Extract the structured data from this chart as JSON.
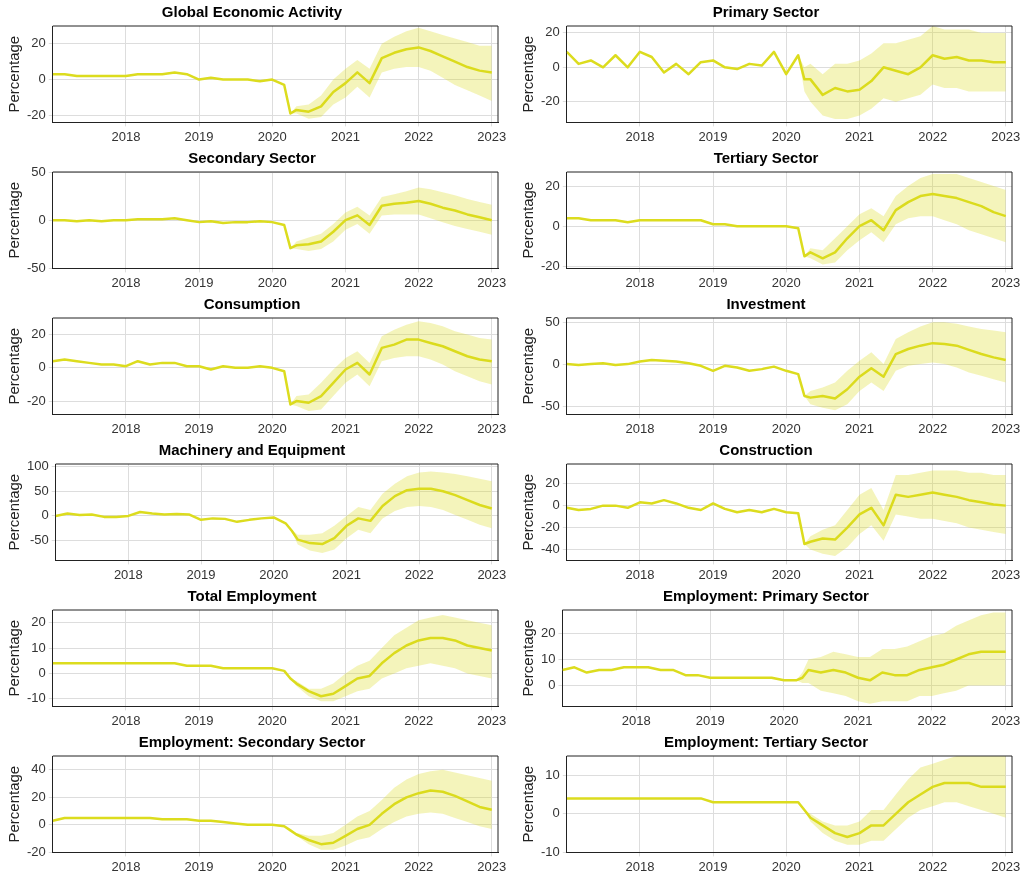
{
  "chart_data": [
    {
      "type": "line",
      "title": "Global Economic Activity",
      "ylabel": "Percentage",
      "grid": true,
      "xlim": [
        "2017-01",
        "2023-02"
      ],
      "xticks": [
        "2018",
        "2019",
        "2020",
        "2021",
        "2022",
        "2023"
      ],
      "ylim": [
        -24,
        30
      ],
      "yticks": [
        -20,
        0,
        20
      ],
      "x": [
        "2017-01",
        "2017-03",
        "2017-05",
        "2017-07",
        "2017-09",
        "2017-11",
        "2018-01",
        "2018-03",
        "2018-05",
        "2018-07",
        "2018-09",
        "2018-11",
        "2019-01",
        "2019-03",
        "2019-05",
        "2019-07",
        "2019-09",
        "2019-11",
        "2020-01",
        "2020-03",
        "2020-04",
        "2020-05",
        "2020-07",
        "2020-09",
        "2020-11",
        "2021-01",
        "2021-03",
        "2021-05",
        "2021-07",
        "2021-09",
        "2021-11",
        "2022-01",
        "2022-03",
        "2022-05",
        "2022-07",
        "2022-09",
        "2022-11",
        "2023-01"
      ],
      "series": [
        {
          "color": "#dcdc1e",
          "values": [
            3,
            3,
            2,
            2,
            2,
            2,
            2,
            3,
            3,
            3,
            4,
            3,
            0,
            1,
            0,
            0,
            0,
            -1,
            0,
            -3,
            -19,
            -17,
            -18,
            -15,
            -7,
            -2,
            4,
            -2,
            12,
            15,
            17,
            18,
            16,
            13,
            10,
            7,
            5,
            4
          ],
          "lower": [
            null,
            null,
            null,
            null,
            null,
            null,
            null,
            null,
            null,
            null,
            null,
            null,
            null,
            null,
            null,
            null,
            null,
            null,
            null,
            -3,
            -19,
            -19,
            -22,
            -21,
            -14,
            -10,
            -4,
            -10,
            4,
            6,
            7,
            7,
            5,
            1,
            -3,
            -6,
            -9,
            -12
          ],
          "upper": [
            null,
            null,
            null,
            null,
            null,
            null,
            null,
            null,
            null,
            null,
            null,
            null,
            null,
            null,
            null,
            null,
            null,
            null,
            null,
            -3,
            -19,
            -15,
            -14,
            -9,
            0,
            6,
            11,
            6,
            20,
            24,
            27,
            29,
            27,
            25,
            23,
            21,
            19,
            19
          ]
        }
      ]
    },
    {
      "type": "line",
      "title": "Primary Sector",
      "ylabel": "Percentage",
      "grid": true,
      "xlim": [
        "2017-01",
        "2023-02"
      ],
      "xticks": [
        "2018",
        "2019",
        "2020",
        "2021",
        "2022",
        "2023"
      ],
      "ylim": [
        -32,
        24
      ],
      "yticks": [
        -20,
        0,
        20
      ],
      "x": [
        "2017-01",
        "2017-03",
        "2017-05",
        "2017-07",
        "2017-09",
        "2017-11",
        "2018-01",
        "2018-03",
        "2018-05",
        "2018-07",
        "2018-09",
        "2018-11",
        "2019-01",
        "2019-03",
        "2019-05",
        "2019-07",
        "2019-09",
        "2019-11",
        "2020-01",
        "2020-03",
        "2020-04",
        "2020-05",
        "2020-07",
        "2020-09",
        "2020-11",
        "2021-01",
        "2021-03",
        "2021-05",
        "2021-07",
        "2021-09",
        "2021-11",
        "2022-01",
        "2022-03",
        "2022-05",
        "2022-07",
        "2022-09",
        "2022-11",
        "2023-01"
      ],
      "series": [
        {
          "color": "#dcdc1e",
          "values": [
            9,
            2,
            4,
            0,
            7,
            0,
            9,
            6,
            -3,
            2,
            -4,
            3,
            4,
            0,
            -1,
            2,
            1,
            9,
            -4,
            7,
            -7,
            -7,
            -16,
            -12,
            -14,
            -13,
            -8,
            0,
            -2,
            -4,
            0,
            7,
            5,
            6,
            4,
            4,
            3,
            3
          ],
          "lower": [
            null,
            null,
            null,
            null,
            null,
            null,
            null,
            null,
            null,
            null,
            null,
            null,
            null,
            null,
            null,
            null,
            null,
            null,
            null,
            7,
            -14,
            -20,
            -28,
            -30,
            -30,
            -28,
            -24,
            -18,
            -20,
            -18,
            -16,
            -10,
            -12,
            -12,
            -14,
            -14,
            -14,
            -14
          ],
          "upper": [
            null,
            null,
            null,
            null,
            null,
            null,
            null,
            null,
            null,
            null,
            null,
            null,
            null,
            null,
            null,
            null,
            null,
            null,
            null,
            7,
            0,
            2,
            -4,
            2,
            2,
            4,
            8,
            14,
            14,
            16,
            18,
            24,
            22,
            22,
            22,
            20,
            20,
            20
          ]
        }
      ]
    },
    {
      "type": "line",
      "title": "Secondary Sector",
      "ylabel": "Percentage",
      "grid": true,
      "xlim": [
        "2017-01",
        "2023-02"
      ],
      "xticks": [
        "2018",
        "2019",
        "2020",
        "2021",
        "2022",
        "2023"
      ],
      "ylim": [
        -50,
        50
      ],
      "yticks": [
        -50,
        0,
        50
      ],
      "x": [
        "2017-01",
        "2017-03",
        "2017-05",
        "2017-07",
        "2017-09",
        "2017-11",
        "2018-01",
        "2018-03",
        "2018-05",
        "2018-07",
        "2018-09",
        "2018-11",
        "2019-01",
        "2019-03",
        "2019-05",
        "2019-07",
        "2019-09",
        "2019-11",
        "2020-01",
        "2020-03",
        "2020-04",
        "2020-05",
        "2020-07",
        "2020-09",
        "2020-11",
        "2021-01",
        "2021-03",
        "2021-05",
        "2021-07",
        "2021-09",
        "2021-11",
        "2022-01",
        "2022-03",
        "2022-05",
        "2022-07",
        "2022-09",
        "2022-11",
        "2023-01"
      ],
      "series": [
        {
          "color": "#dcdc1e",
          "values": [
            0,
            0,
            -1,
            0,
            -1,
            0,
            0,
            1,
            1,
            1,
            2,
            0,
            -2,
            -1,
            -3,
            -2,
            -2,
            -1,
            -2,
            -5,
            -29,
            -26,
            -25,
            -22,
            -12,
            0,
            5,
            -5,
            15,
            17,
            18,
            20,
            17,
            13,
            10,
            6,
            3,
            0
          ],
          "lower": [
            null,
            null,
            null,
            null,
            null,
            null,
            null,
            null,
            null,
            null,
            null,
            null,
            null,
            null,
            null,
            null,
            null,
            null,
            null,
            -5,
            -29,
            -30,
            -32,
            -30,
            -22,
            -10,
            -4,
            -14,
            5,
            6,
            6,
            6,
            2,
            -2,
            -6,
            -9,
            -12,
            -15
          ],
          "upper": [
            null,
            null,
            null,
            null,
            null,
            null,
            null,
            null,
            null,
            null,
            null,
            null,
            null,
            null,
            null,
            null,
            null,
            null,
            null,
            -5,
            -29,
            -22,
            -18,
            -14,
            -4,
            8,
            14,
            5,
            24,
            27,
            30,
            34,
            32,
            29,
            26,
            22,
            19,
            16
          ]
        }
      ]
    },
    {
      "type": "line",
      "title": "Tertiary Sector",
      "ylabel": "Percentage",
      "grid": true,
      "xlim": [
        "2017-01",
        "2023-02"
      ],
      "xticks": [
        "2018",
        "2019",
        "2020",
        "2021",
        "2022",
        "2023"
      ],
      "ylim": [
        -21,
        27
      ],
      "yticks": [
        -20,
        0,
        20
      ],
      "x": [
        "2017-01",
        "2017-03",
        "2017-05",
        "2017-07",
        "2017-09",
        "2017-11",
        "2018-01",
        "2018-03",
        "2018-05",
        "2018-07",
        "2018-09",
        "2018-11",
        "2019-01",
        "2019-03",
        "2019-05",
        "2019-07",
        "2019-09",
        "2019-11",
        "2020-01",
        "2020-03",
        "2020-04",
        "2020-05",
        "2020-07",
        "2020-09",
        "2020-11",
        "2021-01",
        "2021-03",
        "2021-05",
        "2021-07",
        "2021-09",
        "2021-11",
        "2022-01",
        "2022-03",
        "2022-05",
        "2022-07",
        "2022-09",
        "2022-11",
        "2023-01"
      ],
      "series": [
        {
          "color": "#dcdc1e",
          "values": [
            4,
            4,
            3,
            3,
            3,
            2,
            3,
            3,
            3,
            3,
            3,
            3,
            1,
            1,
            0,
            0,
            0,
            0,
            0,
            -1,
            -15,
            -13,
            -16,
            -13,
            -6,
            0,
            3,
            -2,
            8,
            12,
            15,
            16,
            15,
            14,
            12,
            10,
            7,
            5
          ],
          "lower": [
            null,
            null,
            null,
            null,
            null,
            null,
            null,
            null,
            null,
            null,
            null,
            null,
            null,
            null,
            null,
            null,
            null,
            null,
            null,
            -1,
            -15,
            -16,
            -19,
            -18,
            -12,
            -7,
            -3,
            -8,
            1,
            4,
            5,
            5,
            3,
            1,
            -2,
            -4,
            -6,
            -8
          ],
          "upper": [
            null,
            null,
            null,
            null,
            null,
            null,
            null,
            null,
            null,
            null,
            null,
            null,
            null,
            null,
            null,
            null,
            null,
            null,
            null,
            -1,
            -15,
            -11,
            -12,
            -6,
            0,
            6,
            9,
            5,
            15,
            20,
            24,
            26,
            26,
            26,
            24,
            22,
            20,
            18
          ]
        }
      ]
    },
    {
      "type": "line",
      "title": "Consumption",
      "ylabel": "Percentage",
      "grid": true,
      "xlim": [
        "2017-01",
        "2023-02"
      ],
      "xticks": [
        "2018",
        "2019",
        "2020",
        "2021",
        "2022",
        "2023"
      ],
      "ylim": [
        -28,
        30
      ],
      "yticks": [
        -20,
        0,
        20
      ],
      "x": [
        "2017-01",
        "2017-03",
        "2017-05",
        "2017-07",
        "2017-09",
        "2017-11",
        "2018-01",
        "2018-03",
        "2018-05",
        "2018-07",
        "2018-09",
        "2018-11",
        "2019-01",
        "2019-03",
        "2019-05",
        "2019-07",
        "2019-09",
        "2019-11",
        "2020-01",
        "2020-03",
        "2020-04",
        "2020-05",
        "2020-07",
        "2020-09",
        "2020-11",
        "2021-01",
        "2021-03",
        "2021-05",
        "2021-07",
        "2021-09",
        "2021-11",
        "2022-01",
        "2022-03",
        "2022-05",
        "2022-07",
        "2022-09",
        "2022-11",
        "2023-01"
      ],
      "series": [
        {
          "color": "#dcdc1e",
          "values": [
            4,
            5,
            4,
            3,
            2,
            2,
            1,
            4,
            2,
            3,
            3,
            1,
            1,
            -1,
            1,
            0,
            0,
            1,
            0,
            -2,
            -22,
            -20,
            -21,
            -17,
            -9,
            -1,
            3,
            -4,
            12,
            14,
            17,
            17,
            15,
            13,
            10,
            7,
            5,
            4
          ],
          "lower": [
            null,
            null,
            null,
            null,
            null,
            null,
            null,
            null,
            null,
            null,
            null,
            null,
            null,
            null,
            null,
            null,
            null,
            null,
            null,
            -2,
            -22,
            -23,
            -26,
            -25,
            -17,
            -9,
            -4,
            -11,
            4,
            6,
            7,
            7,
            5,
            2,
            -2,
            -5,
            -8,
            -10
          ],
          "upper": [
            null,
            null,
            null,
            null,
            null,
            null,
            null,
            null,
            null,
            null,
            null,
            null,
            null,
            null,
            null,
            null,
            null,
            null,
            null,
            -2,
            -22,
            -17,
            -16,
            -9,
            -1,
            6,
            10,
            3,
            19,
            23,
            26,
            28,
            27,
            25,
            22,
            20,
            18,
            17
          ]
        }
      ]
    },
    {
      "type": "line",
      "title": "Investment",
      "ylabel": "Percentage",
      "grid": true,
      "xlim": [
        "2017-01",
        "2023-02"
      ],
      "xticks": [
        "2018",
        "2019",
        "2020",
        "2021",
        "2022",
        "2023"
      ],
      "ylim": [
        -60,
        55
      ],
      "yticks": [
        -50,
        0,
        50
      ],
      "x": [
        "2017-01",
        "2017-03",
        "2017-05",
        "2017-07",
        "2017-09",
        "2017-11",
        "2018-01",
        "2018-03",
        "2018-05",
        "2018-07",
        "2018-09",
        "2018-11",
        "2019-01",
        "2019-03",
        "2019-05",
        "2019-07",
        "2019-09",
        "2019-11",
        "2020-01",
        "2020-03",
        "2020-04",
        "2020-05",
        "2020-07",
        "2020-09",
        "2020-11",
        "2021-01",
        "2021-03",
        "2021-05",
        "2021-07",
        "2021-09",
        "2021-11",
        "2022-01",
        "2022-03",
        "2022-05",
        "2022-07",
        "2022-09",
        "2022-11",
        "2023-01"
      ],
      "series": [
        {
          "color": "#dcdc1e",
          "values": [
            0,
            -1,
            0,
            1,
            -1,
            0,
            3,
            5,
            4,
            3,
            1,
            -2,
            -8,
            -2,
            -4,
            -8,
            -6,
            -3,
            -8,
            -12,
            -38,
            -40,
            -38,
            -41,
            -30,
            -15,
            -5,
            -15,
            12,
            18,
            22,
            25,
            24,
            22,
            17,
            12,
            8,
            5
          ],
          "lower": [
            null,
            null,
            null,
            null,
            null,
            null,
            null,
            null,
            null,
            null,
            null,
            null,
            null,
            null,
            null,
            null,
            null,
            null,
            null,
            -12,
            -38,
            -48,
            -52,
            -55,
            -48,
            -32,
            -22,
            -32,
            -8,
            -2,
            0,
            2,
            0,
            -4,
            -10,
            -14,
            -18,
            -22
          ],
          "upper": [
            null,
            null,
            null,
            null,
            null,
            null,
            null,
            null,
            null,
            null,
            null,
            null,
            null,
            null,
            null,
            null,
            null,
            null,
            null,
            -12,
            -38,
            -32,
            -28,
            -22,
            -8,
            4,
            14,
            0,
            30,
            38,
            45,
            50,
            50,
            48,
            45,
            42,
            40,
            38
          ]
        }
      ]
    },
    {
      "type": "line",
      "title": "Machinery and Equipment",
      "ylabel": "Percentage",
      "grid": true,
      "xlim": [
        "2017-01",
        "2023-02"
      ],
      "xticks": [
        "2018",
        "2019",
        "2020",
        "2021",
        "2022",
        "2023"
      ],
      "ylim": [
        -90,
        105
      ],
      "yticks": [
        -50,
        0,
        50,
        100
      ],
      "x": [
        "2017-01",
        "2017-03",
        "2017-05",
        "2017-07",
        "2017-09",
        "2017-11",
        "2018-01",
        "2018-03",
        "2018-05",
        "2018-07",
        "2018-09",
        "2018-11",
        "2019-01",
        "2019-03",
        "2019-05",
        "2019-07",
        "2019-09",
        "2019-11",
        "2020-01",
        "2020-03",
        "2020-04",
        "2020-05",
        "2020-07",
        "2020-09",
        "2020-11",
        "2021-01",
        "2021-03",
        "2021-05",
        "2021-07",
        "2021-09",
        "2021-11",
        "2022-01",
        "2022-03",
        "2022-05",
        "2022-07",
        "2022-09",
        "2022-11",
        "2023-01"
      ],
      "series": [
        {
          "color": "#dcdc1e",
          "values": [
            0,
            5,
            2,
            3,
            -2,
            -2,
            0,
            8,
            5,
            3,
            4,
            3,
            -8,
            -5,
            -6,
            -12,
            -8,
            -5,
            -3,
            -15,
            -30,
            -48,
            -55,
            -57,
            -45,
            -20,
            -5,
            -10,
            20,
            40,
            52,
            55,
            55,
            50,
            42,
            32,
            22,
            15
          ],
          "lower": [
            null,
            null,
            null,
            null,
            null,
            null,
            null,
            null,
            null,
            null,
            null,
            null,
            null,
            null,
            null,
            null,
            null,
            null,
            null,
            -15,
            -32,
            -58,
            -70,
            -75,
            -68,
            -45,
            -28,
            -35,
            -5,
            10,
            18,
            20,
            18,
            12,
            2,
            -8,
            -18,
            -25
          ],
          "upper": [
            null,
            null,
            null,
            null,
            null,
            null,
            null,
            null,
            null,
            null,
            null,
            null,
            null,
            null,
            null,
            null,
            null,
            null,
            null,
            -15,
            -28,
            -38,
            -38,
            -35,
            -20,
            0,
            18,
            12,
            45,
            65,
            80,
            88,
            90,
            88,
            85,
            80,
            75,
            70
          ]
        }
      ]
    },
    {
      "type": "line",
      "title": "Construction",
      "ylabel": "Percentage",
      "grid": true,
      "xlim": [
        "2017-01",
        "2023-02"
      ],
      "xticks": [
        "2018",
        "2019",
        "2020",
        "2021",
        "2022",
        "2023"
      ],
      "ylim": [
        -50,
        38
      ],
      "yticks": [
        -40,
        -20,
        0,
        20
      ],
      "x": [
        "2017-01",
        "2017-03",
        "2017-05",
        "2017-07",
        "2017-09",
        "2017-11",
        "2018-01",
        "2018-03",
        "2018-05",
        "2018-07",
        "2018-09",
        "2018-11",
        "2019-01",
        "2019-03",
        "2019-05",
        "2019-07",
        "2019-09",
        "2019-11",
        "2020-01",
        "2020-03",
        "2020-04",
        "2020-05",
        "2020-07",
        "2020-09",
        "2020-11",
        "2021-01",
        "2021-03",
        "2021-05",
        "2021-07",
        "2021-09",
        "2021-11",
        "2022-01",
        "2022-03",
        "2022-05",
        "2022-07",
        "2022-09",
        "2022-11",
        "2023-01"
      ],
      "series": [
        {
          "color": "#dcdc1e",
          "values": [
            -2,
            -4,
            -3,
            0,
            0,
            -2,
            3,
            2,
            5,
            2,
            -2,
            -4,
            2,
            -3,
            -6,
            -4,
            -6,
            -3,
            -6,
            -7,
            -35,
            -33,
            -30,
            -31,
            -20,
            -8,
            -2,
            -18,
            10,
            8,
            10,
            12,
            10,
            8,
            5,
            3,
            1,
            0
          ],
          "lower": [
            null,
            null,
            null,
            null,
            null,
            null,
            null,
            null,
            null,
            null,
            null,
            null,
            null,
            null,
            null,
            null,
            null,
            null,
            null,
            -7,
            -35,
            -40,
            -44,
            -46,
            -38,
            -26,
            -18,
            -32,
            -8,
            -10,
            -12,
            -12,
            -14,
            -16,
            -20,
            -22,
            -24,
            -26
          ],
          "upper": [
            null,
            null,
            null,
            null,
            null,
            null,
            null,
            null,
            null,
            null,
            null,
            null,
            null,
            null,
            null,
            null,
            null,
            null,
            null,
            -7,
            -35,
            -28,
            -22,
            -18,
            -4,
            10,
            16,
            -4,
            28,
            28,
            30,
            32,
            32,
            32,
            30,
            30,
            28,
            28
          ]
        }
      ]
    },
    {
      "type": "line",
      "title": "Total Employment",
      "ylabel": "Percentage",
      "grid": true,
      "xlim": [
        "2017-01",
        "2023-02"
      ],
      "xticks": [
        "2018",
        "2019",
        "2020",
        "2021",
        "2022",
        "2023"
      ],
      "ylim": [
        -13,
        25
      ],
      "yticks": [
        -10,
        0,
        10,
        20
      ],
      "x": [
        "2017-01",
        "2017-03",
        "2017-05",
        "2017-07",
        "2017-09",
        "2017-11",
        "2018-01",
        "2018-03",
        "2018-05",
        "2018-07",
        "2018-09",
        "2018-11",
        "2019-01",
        "2019-03",
        "2019-05",
        "2019-07",
        "2019-09",
        "2019-11",
        "2020-01",
        "2020-03",
        "2020-04",
        "2020-05",
        "2020-07",
        "2020-09",
        "2020-11",
        "2021-01",
        "2021-03",
        "2021-05",
        "2021-07",
        "2021-09",
        "2021-11",
        "2022-01",
        "2022-03",
        "2022-05",
        "2022-07",
        "2022-09",
        "2022-11",
        "2023-01"
      ],
      "series": [
        {
          "color": "#dcdc1e",
          "values": [
            4,
            4,
            4,
            4,
            4,
            4,
            4,
            4,
            4,
            4,
            4,
            3,
            3,
            3,
            2,
            2,
            2,
            2,
            2,
            1,
            -2,
            -4,
            -7,
            -9,
            -8,
            -5,
            -2,
            -1,
            4,
            8,
            11,
            13,
            14,
            14,
            13,
            11,
            10,
            9
          ],
          "lower": [
            null,
            null,
            null,
            null,
            null,
            null,
            null,
            null,
            null,
            null,
            null,
            null,
            null,
            null,
            null,
            null,
            null,
            null,
            null,
            1,
            -2,
            -5,
            -9,
            -11,
            -11,
            -9,
            -7,
            -6,
            -2,
            0,
            2,
            3,
            4,
            3,
            2,
            0,
            -1,
            -2
          ],
          "upper": [
            null,
            null,
            null,
            null,
            null,
            null,
            null,
            null,
            null,
            null,
            null,
            null,
            null,
            null,
            null,
            null,
            null,
            null,
            null,
            1,
            -2,
            -3,
            -6,
            -6,
            -4,
            0,
            3,
            5,
            10,
            15,
            18,
            21,
            22,
            23,
            22,
            21,
            20,
            19
          ]
        }
      ]
    },
    {
      "type": "line",
      "title": "Employment: Primary Sector",
      "ylabel": "Percentage",
      "grid": true,
      "xlim": [
        "2017-01",
        "2023-02"
      ],
      "xticks": [
        "2018",
        "2019",
        "2020",
        "2021",
        "2022",
        "2023"
      ],
      "ylim": [
        -8,
        29
      ],
      "yticks": [
        0,
        10,
        20
      ],
      "x": [
        "2017-01",
        "2017-03",
        "2017-05",
        "2017-07",
        "2017-09",
        "2017-11",
        "2018-01",
        "2018-03",
        "2018-05",
        "2018-07",
        "2018-09",
        "2018-11",
        "2019-01",
        "2019-03",
        "2019-05",
        "2019-07",
        "2019-09",
        "2019-11",
        "2020-01",
        "2020-03",
        "2020-04",
        "2020-05",
        "2020-07",
        "2020-09",
        "2020-11",
        "2021-01",
        "2021-03",
        "2021-05",
        "2021-07",
        "2021-09",
        "2021-11",
        "2022-01",
        "2022-03",
        "2022-05",
        "2022-07",
        "2022-09",
        "2022-11",
        "2023-01"
      ],
      "series": [
        {
          "color": "#dcdc1e",
          "values": [
            6,
            7,
            5,
            6,
            6,
            7,
            7,
            7,
            6,
            6,
            4,
            4,
            3,
            3,
            3,
            3,
            3,
            3,
            2,
            2,
            3,
            6,
            5,
            6,
            5,
            3,
            2,
            5,
            4,
            4,
            6,
            7,
            8,
            10,
            12,
            13,
            13,
            13
          ],
          "lower": [
            null,
            null,
            null,
            null,
            null,
            null,
            null,
            null,
            null,
            null,
            null,
            null,
            null,
            null,
            null,
            null,
            null,
            null,
            null,
            2,
            1,
            1,
            -2,
            -3,
            -4,
            -6,
            -7,
            -6,
            -6,
            -6,
            -4,
            -4,
            -3,
            -2,
            0,
            0,
            0,
            0
          ],
          "upper": [
            null,
            null,
            null,
            null,
            null,
            null,
            null,
            null,
            null,
            null,
            null,
            null,
            null,
            null,
            null,
            null,
            null,
            null,
            null,
            2,
            5,
            10,
            11,
            13,
            12,
            11,
            11,
            14,
            14,
            15,
            17,
            19,
            20,
            23,
            25,
            27,
            28,
            28
          ]
        }
      ]
    },
    {
      "type": "line",
      "title": "Employment: Secondary Sector",
      "ylabel": "Percentage",
      "grid": true,
      "xlim": [
        "2017-01",
        "2023-02"
      ],
      "xticks": [
        "2018",
        "2019",
        "2020",
        "2021",
        "2022",
        "2023"
      ],
      "ylim": [
        -20,
        50
      ],
      "yticks": [
        -20,
        0,
        20,
        40
      ],
      "x": [
        "2017-01",
        "2017-03",
        "2017-05",
        "2017-07",
        "2017-09",
        "2017-11",
        "2018-01",
        "2018-03",
        "2018-05",
        "2018-07",
        "2018-09",
        "2018-11",
        "2019-01",
        "2019-03",
        "2019-05",
        "2019-07",
        "2019-09",
        "2019-11",
        "2020-01",
        "2020-03",
        "2020-04",
        "2020-05",
        "2020-07",
        "2020-09",
        "2020-11",
        "2021-01",
        "2021-03",
        "2021-05",
        "2021-07",
        "2021-09",
        "2021-11",
        "2022-01",
        "2022-03",
        "2022-05",
        "2022-07",
        "2022-09",
        "2022-11",
        "2023-01"
      ],
      "series": [
        {
          "color": "#dcdc1e",
          "values": [
            3,
            5,
            5,
            5,
            5,
            5,
            5,
            5,
            5,
            4,
            4,
            4,
            3,
            3,
            2,
            1,
            0,
            0,
            0,
            -1,
            -4,
            -7,
            -11,
            -14,
            -13,
            -8,
            -3,
            0,
            8,
            15,
            20,
            23,
            25,
            24,
            21,
            17,
            13,
            11
          ],
          "lower": [
            null,
            null,
            null,
            null,
            null,
            null,
            null,
            null,
            null,
            null,
            null,
            null,
            null,
            null,
            null,
            null,
            null,
            null,
            null,
            -1,
            -4,
            -8,
            -14,
            -18,
            -18,
            -15,
            -11,
            -9,
            -3,
            2,
            6,
            8,
            9,
            8,
            5,
            2,
            -1,
            -3
          ],
          "upper": [
            null,
            null,
            null,
            null,
            null,
            null,
            null,
            null,
            null,
            null,
            null,
            null,
            null,
            null,
            null,
            null,
            null,
            null,
            null,
            -1,
            -4,
            -6,
            -8,
            -8,
            -6,
            0,
            6,
            10,
            18,
            27,
            33,
            37,
            39,
            40,
            38,
            36,
            34,
            32
          ]
        }
      ]
    },
    {
      "type": "line",
      "title": "Employment: Tertiary Sector",
      "ylabel": "Percentage",
      "grid": true,
      "xlim": [
        "2017-01",
        "2023-02"
      ],
      "xticks": [
        "2018",
        "2019",
        "2020",
        "2021",
        "2022",
        "2023"
      ],
      "ylim": [
        -10,
        15
      ],
      "yticks": [
        -10,
        0,
        10
      ],
      "x": [
        "2017-01",
        "2017-03",
        "2017-05",
        "2017-07",
        "2017-09",
        "2017-11",
        "2018-01",
        "2018-03",
        "2018-05",
        "2018-07",
        "2018-09",
        "2018-11",
        "2019-01",
        "2019-03",
        "2019-05",
        "2019-07",
        "2019-09",
        "2019-11",
        "2020-01",
        "2020-03",
        "2020-04",
        "2020-05",
        "2020-07",
        "2020-09",
        "2020-11",
        "2021-01",
        "2021-03",
        "2021-05",
        "2021-07",
        "2021-09",
        "2021-11",
        "2022-01",
        "2022-03",
        "2022-05",
        "2022-07",
        "2022-09",
        "2022-11",
        "2023-01"
      ],
      "series": [
        {
          "color": "#dcdc1e",
          "values": [
            4,
            4,
            4,
            4,
            4,
            4,
            4,
            4,
            4,
            4,
            4,
            4,
            3,
            3,
            3,
            3,
            3,
            3,
            3,
            3,
            1,
            -1,
            -3,
            -5,
            -6,
            -5,
            -3,
            -3,
            0,
            3,
            5,
            7,
            8,
            8,
            8,
            7,
            7,
            7
          ],
          "lower": [
            null,
            null,
            null,
            null,
            null,
            null,
            null,
            null,
            null,
            null,
            null,
            null,
            null,
            null,
            null,
            null,
            null,
            null,
            null,
            3,
            1,
            -2,
            -5,
            -7,
            -8,
            -8,
            -7,
            -7,
            -4,
            -1,
            1,
            2,
            3,
            3,
            2,
            1,
            0,
            -1
          ],
          "upper": [
            null,
            null,
            null,
            null,
            null,
            null,
            null,
            null,
            null,
            null,
            null,
            null,
            null,
            null,
            null,
            null,
            null,
            null,
            null,
            3,
            1,
            0,
            -2,
            -3,
            -3,
            -2,
            1,
            1,
            5,
            9,
            12,
            13,
            14,
            15,
            15,
            15,
            15,
            15
          ]
        }
      ]
    }
  ]
}
